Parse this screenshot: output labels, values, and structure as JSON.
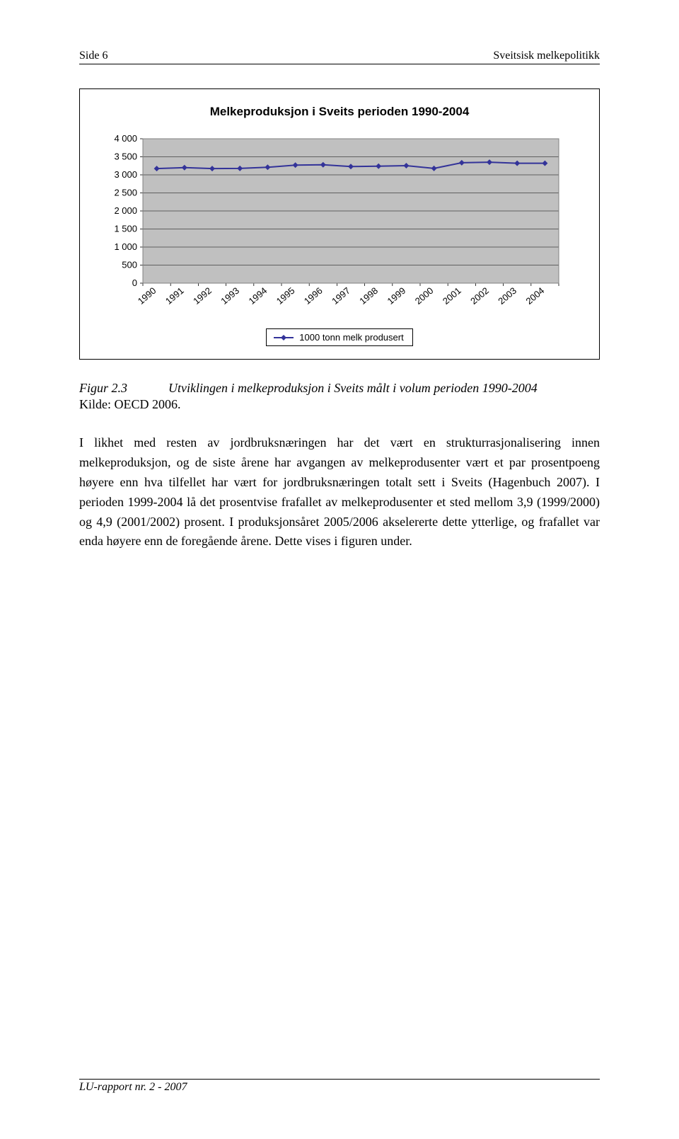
{
  "header": {
    "left": "Side 6",
    "right": "Sveitsisk melkepolitikk"
  },
  "chart": {
    "type": "line",
    "title": "Melkeproduksjon i Sveits perioden 1990-2004",
    "title_fontsize": 17,
    "categories": [
      "1990",
      "1991",
      "1992",
      "1993",
      "1994",
      "1995",
      "1996",
      "1997",
      "1998",
      "1999",
      "2000",
      "2001",
      "2002",
      "2003",
      "2004"
    ],
    "values": [
      3175,
      3200,
      3175,
      3180,
      3210,
      3270,
      3280,
      3230,
      3240,
      3255,
      3180,
      3335,
      3350,
      3320,
      3320
    ],
    "ylim": [
      0,
      4000
    ],
    "ytick_step": 500,
    "ytick_labels": [
      "0",
      "500",
      "1 000",
      "1 500",
      "2 000",
      "2 500",
      "3 000",
      "3 500",
      "4 000"
    ],
    "label_fontsize": 13,
    "xtick_fontsize": 13,
    "line_color": "#333399",
    "marker_color": "#333399",
    "marker_size": 4,
    "line_width": 2,
    "background_color": "#c0c0c0",
    "plot_border_color": "#808080",
    "gridline_color": "#000000",
    "legend_label": "1000 tonn melk produsert"
  },
  "caption": {
    "fignum": "Figur 2.3",
    "figtext": "Utviklingen i melkeproduksjon i Sveits målt i volum perioden 1990-2004",
    "source": "Kilde: OECD 2006."
  },
  "body": "I likhet med resten av jordbruksnæringen har det vært en strukturrasjonalisering innen melkeproduksjon, og de siste årene har avgangen av melkeprodusenter vært et par prosentpoeng høyere enn hva tilfellet har vært for jordbruksnæringen totalt sett i Sveits (Hagenbuch 2007). I perioden 1999-2004 lå det prosentvise frafallet av melkeprodusenter et sted mellom 3,9 (1999/2000) og 4,9 (2001/2002) prosent. I produksjonsåret 2005/2006 akselererte dette ytterlige, og frafallet var enda høyere enn de foregående årene. Dette vises i figuren under.",
  "footer": "LU-rapport nr. 2 - 2007"
}
